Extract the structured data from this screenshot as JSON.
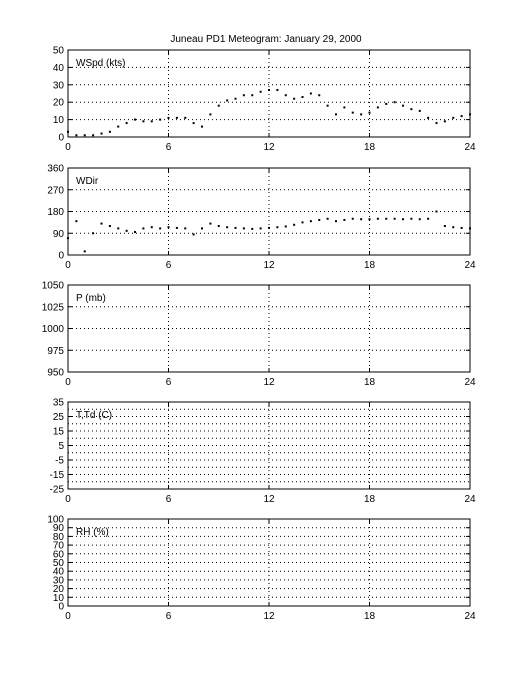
{
  "title": "Juneau PD1 Meteogram:    January 29, 2000",
  "chart_data": [
    {
      "type": "scatter",
      "label": "WSpd (kts)",
      "xlim": [
        0,
        24
      ],
      "ylim": [
        0,
        50
      ],
      "xticks": [
        "0",
        "6",
        "12",
        "18",
        "24"
      ],
      "yticks": [
        "0",
        "10",
        "20",
        "30",
        "40",
        "50"
      ],
      "grid": true,
      "series": [
        {
          "x": [
            0,
            0.5,
            1,
            1.5,
            2,
            2.5,
            3,
            3.5,
            4,
            4.5,
            5,
            5.5,
            6,
            6.5,
            7,
            7.5,
            8,
            8.5,
            9,
            9.5,
            10,
            10.5,
            11,
            11.5,
            12,
            12.5,
            13,
            13.5,
            14,
            14.5,
            15,
            15.5,
            16,
            16.5,
            17,
            17.5,
            18,
            18.5,
            19,
            19.5,
            20,
            20.5,
            21,
            21.5,
            22,
            22.5,
            23,
            23.5,
            24
          ],
          "y": [
            3,
            1,
            1,
            1,
            2,
            3,
            6,
            8,
            10,
            9,
            9,
            10,
            11,
            11,
            11,
            8,
            6,
            13,
            18,
            21,
            22,
            24,
            24,
            26,
            27,
            27,
            24,
            22,
            23,
            25,
            24,
            18,
            13,
            17,
            14,
            13,
            14,
            17,
            19,
            20,
            18,
            16,
            15,
            11,
            8,
            9,
            11,
            12,
            13
          ]
        }
      ]
    },
    {
      "type": "scatter",
      "label": "WDir",
      "xlim": [
        0,
        24
      ],
      "ylim": [
        0,
        360
      ],
      "xticks": [
        "0",
        "6",
        "12",
        "18",
        "24"
      ],
      "yticks": [
        "0",
        "90",
        "180",
        "270",
        "360"
      ],
      "grid": true,
      "series": [
        {
          "x": [
            0,
            0.5,
            1,
            1.5,
            2,
            2.5,
            3,
            3.5,
            4,
            4.5,
            5,
            5.5,
            6,
            6.5,
            7,
            7.5,
            8,
            8.5,
            9,
            9.5,
            10,
            10.5,
            11,
            11.5,
            12,
            12.5,
            13,
            13.5,
            14,
            14.5,
            15,
            15.5,
            16,
            16.5,
            17,
            17.5,
            18,
            18.5,
            19,
            19.5,
            20,
            20.5,
            21,
            21.5,
            22,
            22.5,
            23,
            23.5,
            24
          ],
          "y": [
            70,
            140,
            15,
            90,
            130,
            120,
            110,
            100,
            95,
            110,
            115,
            110,
            115,
            112,
            110,
            85,
            110,
            130,
            120,
            115,
            112,
            110,
            108,
            110,
            112,
            115,
            118,
            125,
            135,
            140,
            145,
            150,
            140,
            145,
            150,
            148,
            148,
            150,
            150,
            150,
            148,
            150,
            148,
            150,
            180,
            120,
            115,
            112,
            110
          ]
        }
      ]
    },
    {
      "type": "line",
      "label": "P (mb)",
      "xlim": [
        0,
        24
      ],
      "ylim": [
        950,
        1050
      ],
      "xticks": [
        "0",
        "6",
        "12",
        "18",
        "24"
      ],
      "yticks": [
        "950",
        "975",
        "1000",
        "1025",
        "1050"
      ],
      "grid": true,
      "series": []
    },
    {
      "type": "line",
      "label": "T,Td (C)",
      "xlim": [
        0,
        24
      ],
      "ylim": [
        -25,
        35
      ],
      "xticks": [
        "0",
        "6",
        "12",
        "18",
        "24"
      ],
      "yticks": [
        "-25",
        "-15",
        "-5",
        "5",
        "15",
        "25",
        "35"
      ],
      "yticks_minor": [
        "-20",
        "-10",
        "0",
        "10",
        "20",
        "30"
      ],
      "grid": true,
      "series": []
    },
    {
      "type": "line",
      "label": "RH (%)",
      "xlim": [
        0,
        24
      ],
      "ylim": [
        0,
        100
      ],
      "xticks": [
        "0",
        "6",
        "12",
        "18",
        "24"
      ],
      "yticks": [
        "0",
        "10",
        "20",
        "30",
        "40",
        "50",
        "60",
        "70",
        "80",
        "90",
        "100"
      ],
      "grid": true,
      "series": []
    }
  ]
}
